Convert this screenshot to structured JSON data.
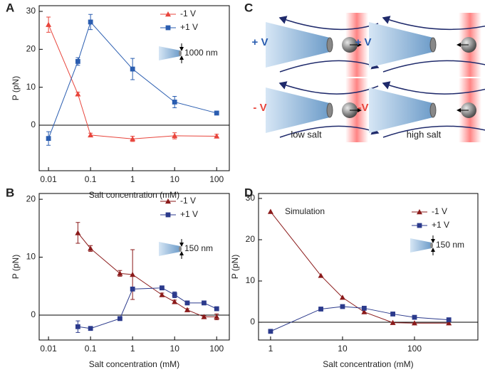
{
  "chart_data": [
    {
      "type": "scatter",
      "panel_label": "A",
      "x_label": "Salt concentration (mM)",
      "y_label": "P (pN)",
      "x_scale": "log",
      "xlim": [
        0.006,
        200
      ],
      "xticks": [
        0.01,
        0.1,
        1,
        10,
        100
      ],
      "ylim": [
        -12,
        31.5
      ],
      "yticks": [
        0,
        10,
        20,
        30
      ],
      "zero_line": true,
      "legend": "upper right",
      "inset_label": "1000 nm",
      "series": [
        {
          "name": "-1 V",
          "color": "#e8453c",
          "marker": "triangle",
          "x": [
            0.01,
            0.05,
            0.1,
            1,
            10,
            100
          ],
          "values": [
            26.5,
            8.2,
            -2.6,
            -3.6,
            -2.8,
            -2.9
          ],
          "errors": [
            2,
            0.5,
            0.5,
            0.7,
            0.8,
            0.5
          ]
        },
        {
          "name": "+1 V",
          "color": "#2a5db0",
          "marker": "square",
          "x": [
            0.01,
            0.05,
            0.1,
            1,
            10,
            100
          ],
          "values": [
            -3.5,
            16.8,
            27.2,
            14.8,
            6.1,
            3.2
          ],
          "errors": [
            1.8,
            1,
            2,
            2.8,
            1.5,
            0.4
          ]
        }
      ]
    },
    {
      "type": "scatter",
      "panel_label": "B",
      "x_label": "Salt concentration (mM)",
      "y_label": "P (pN)",
      "x_scale": "log",
      "xlim": [
        0.006,
        200
      ],
      "xticks": [
        0.01,
        0.1,
        1,
        10,
        100
      ],
      "ylim": [
        -4.3,
        21
      ],
      "yticks": [
        0,
        10,
        20
      ],
      "zero_line": true,
      "legend": "upper right",
      "inset_label": "150 nm",
      "series": [
        {
          "name": "-1 V",
          "color": "#8b1a1a",
          "marker": "triangle",
          "x": [
            0.05,
            0.1,
            0.5,
            1,
            5,
            10,
            20,
            50,
            100
          ],
          "values": [
            14.2,
            11.5,
            7.2,
            7,
            3.5,
            2.3,
            0.9,
            -0.3,
            -0.3
          ],
          "errors": [
            1.8,
            0.5,
            0.5,
            4.3,
            0.3,
            0.3,
            0.2,
            0.2,
            0.5
          ]
        },
        {
          "name": "+1 V",
          "color": "#2b3a8c",
          "marker": "square",
          "x": [
            0.05,
            0.1,
            0.5,
            1,
            5,
            10,
            20,
            50,
            100
          ],
          "values": [
            -2,
            -2.3,
            -0.6,
            4.5,
            4.7,
            3.5,
            2.1,
            2.1,
            1.1
          ],
          "errors": [
            1,
            0.2,
            0.2,
            0.3,
            0.3,
            0.5,
            0.2,
            0.2,
            0.3
          ]
        }
      ]
    },
    {
      "type": "scatter",
      "panel_label": "D",
      "annotation": "Simulation",
      "x_label": "Salt concentration (mM)",
      "y_label": "P (pN)",
      "x_scale": "log",
      "xlim": [
        0.68,
        760
      ],
      "xticks": [
        1,
        10,
        100
      ],
      "ylim": [
        -4.3,
        31.2
      ],
      "yticks": [
        0,
        10,
        20,
        30
      ],
      "zero_line": true,
      "legend": "upper right",
      "inset_label": "150 nm",
      "series": [
        {
          "name": "-1 V",
          "color": "#8b1a1a",
          "marker": "triangle",
          "x": [
            1,
            5,
            10,
            20,
            50,
            100,
            300
          ],
          "values": [
            26.8,
            11.3,
            6,
            2.5,
            -0.1,
            -0.2,
            -0.2
          ]
        },
        {
          "name": "+1 V",
          "color": "#2b3a8c",
          "marker": "square",
          "x": [
            1,
            5,
            10,
            20,
            50,
            100,
            300
          ],
          "values": [
            -2.2,
            3.2,
            3.8,
            3.4,
            2,
            1.2,
            0.6
          ]
        }
      ]
    }
  ],
  "diagram": {
    "panel_label": "C",
    "cells": [
      {
        "label": "+ V",
        "color": "#2a5db0"
      },
      {
        "label": "+ V",
        "color": "#2a5db0"
      },
      {
        "label": "- V",
        "color": "#e8453c"
      },
      {
        "label": "-V",
        "color": "#e8453c"
      }
    ],
    "captions": [
      "low salt",
      "high salt"
    ]
  }
}
